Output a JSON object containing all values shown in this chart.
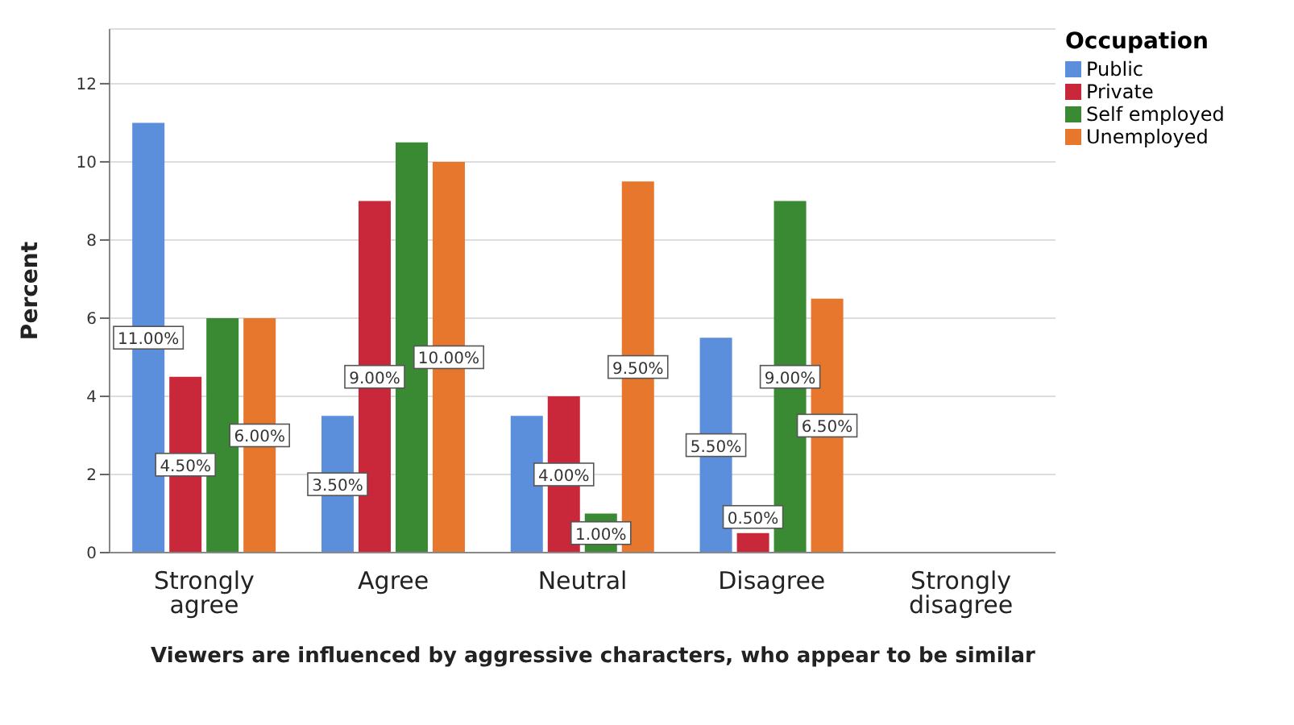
{
  "chart_data": {
    "type": "bar",
    "xlabel": "Viewers are influenced by aggressive characters, who appear to be similar",
    "ylabel": "Percent",
    "legend_title": "Occupation",
    "categories": [
      "Strongly agree",
      "Agree",
      "Neutral",
      "Disagree",
      "Strongly disagree"
    ],
    "series": [
      {
        "name": "Public",
        "color": "#5b8fdc",
        "values": [
          11,
          3.5,
          3.5,
          5.5,
          null
        ],
        "value_labels": [
          "11.00%",
          "3.50%",
          null,
          "5.50%",
          null
        ]
      },
      {
        "name": "Private",
        "color": "#c8283a",
        "values": [
          4.5,
          9,
          4,
          0.5,
          null
        ],
        "value_labels": [
          "4.50%",
          "9.00%",
          "4.00%",
          "0.50%",
          null
        ]
      },
      {
        "name": "Self employed",
        "color": "#3a8a34",
        "values": [
          6,
          10.5,
          1,
          9,
          null
        ],
        "value_labels": [
          null,
          null,
          "1.00%",
          "9.00%",
          null
        ]
      },
      {
        "name": "Unemployed",
        "color": "#e8772e",
        "values": [
          6,
          10,
          9.5,
          6.5,
          null
        ],
        "value_labels": [
          "6.00%",
          "10.00%",
          "9.50%",
          "6.50%",
          null
        ]
      }
    ],
    "ylim": [
      0,
      13.4
    ],
    "yticks": [
      0,
      2,
      4,
      6,
      8,
      10,
      12
    ],
    "grid": "y",
    "legend": "top right"
  }
}
